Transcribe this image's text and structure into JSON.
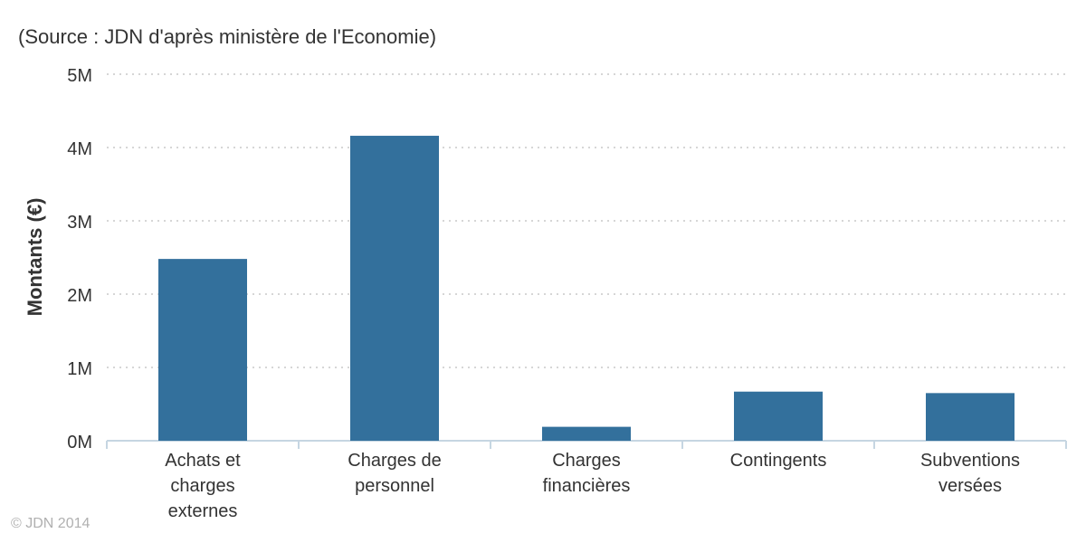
{
  "subtitle": "(Source : JDN d'après ministère de l'Economie)",
  "credit": "© JDN 2014",
  "colors": {
    "bar": "#33709c",
    "grid": "#c8c8c8",
    "axis": "#c6d6e2"
  },
  "chart_data": {
    "type": "bar",
    "title": "",
    "xlabel": "",
    "ylabel": "Montants (€)",
    "categories": [
      [
        "Achats et",
        "charges",
        "externes"
      ],
      [
        "Charges de",
        "personnel"
      ],
      [
        "Charges",
        "financières"
      ],
      [
        "Contingents"
      ],
      [
        "Subventions",
        "versées"
      ]
    ],
    "values": [
      2480000,
      4160000,
      190000,
      670000,
      650000
    ],
    "ylim": [
      0,
      5000000
    ],
    "yticks": [
      0,
      1000000,
      2000000,
      3000000,
      4000000,
      5000000
    ],
    "ytick_labels": [
      "0M",
      "1M",
      "2M",
      "3M",
      "4M",
      "5M"
    ],
    "grid": true,
    "legend": "none"
  }
}
